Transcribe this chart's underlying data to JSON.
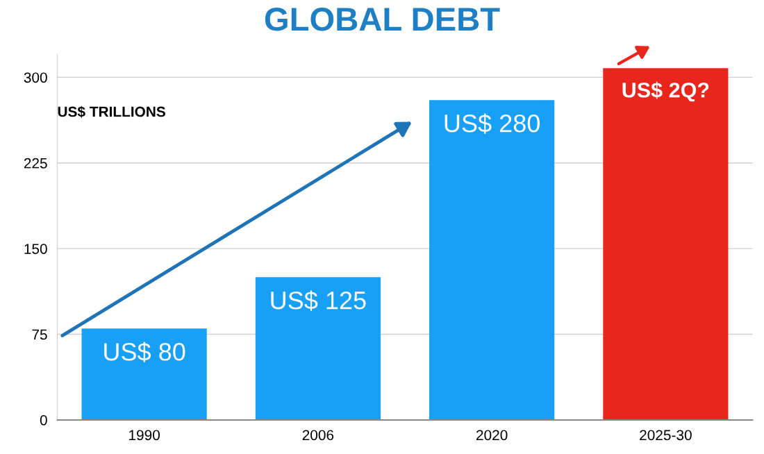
{
  "chart_data": {
    "type": "bar",
    "title": "GLOBAL DEBT",
    "categories": [
      "1990",
      "2006",
      "2020",
      "2025-30"
    ],
    "values": [
      80,
      125,
      280,
      308
    ],
    "colors": [
      "#189ff6",
      "#189ff6",
      "#189ff6",
      "#e8261c"
    ],
    "value_labels": [
      "US$ 80",
      "US$ 125",
      "US$ 280",
      "US$ 2Q?"
    ],
    "annotations": [
      "US$ TRILLIONS"
    ],
    "ylim": [
      0,
      320
    ],
    "yticks": [
      0,
      75,
      150,
      225,
      300
    ],
    "grid": "y"
  }
}
